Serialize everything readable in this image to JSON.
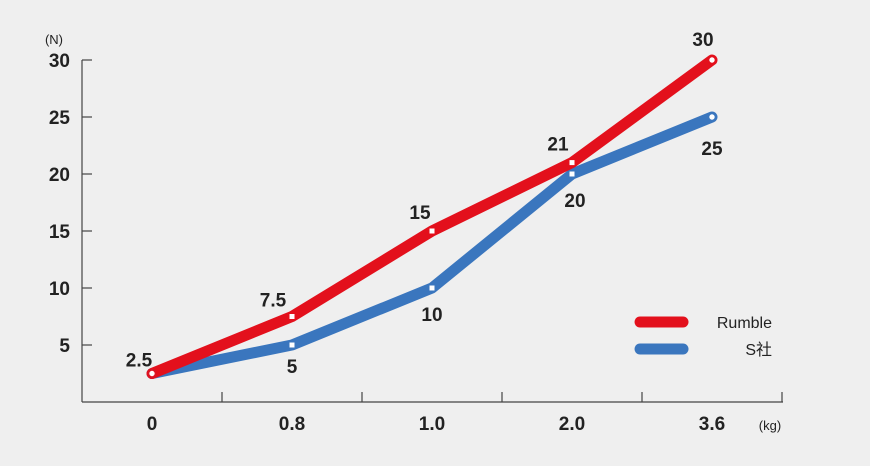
{
  "chart_data": {
    "type": "line",
    "categories": [
      "0",
      "0.8",
      "1.0",
      "2.0",
      "3.6"
    ],
    "y_unit": "(N)",
    "x_unit": "(kg)",
    "ylim": [
      0,
      30
    ],
    "yticks": [
      "5",
      "10",
      "15",
      "20",
      "25",
      "30"
    ],
    "grid": false,
    "legend_position": "bottom-right",
    "series": [
      {
        "name": "Rumble",
        "color": "#e3101c",
        "values": [
          2.5,
          7.5,
          15,
          21,
          30
        ],
        "labels": [
          "2.5",
          "7.5",
          "15",
          "21",
          "30"
        ]
      },
      {
        "name": "S社",
        "color": "#3a76be",
        "values": [
          2.5,
          5,
          10,
          20,
          25
        ],
        "labels": [
          "",
          "5",
          "10",
          "20",
          "25"
        ]
      }
    ]
  }
}
